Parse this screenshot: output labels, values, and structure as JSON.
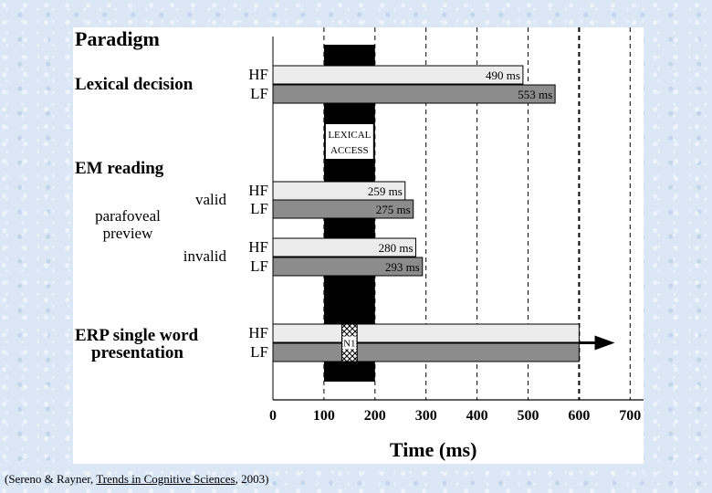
{
  "chart_data": {
    "type": "bar",
    "title": "Paradigm",
    "xlabel": "Time (ms)",
    "xlim": [
      0,
      700
    ],
    "xticks": [
      "0",
      "100",
      "200",
      "300",
      "400",
      "500",
      "600",
      "700"
    ],
    "dashed_lines": [
      100,
      200,
      300,
      400,
      500,
      600,
      700
    ],
    "lexical_access_window": {
      "start": 100,
      "end": 200,
      "label_lines": [
        "LEXICAL",
        "ACCESS"
      ]
    },
    "sections": [
      {
        "label_lines": [
          "Lexical decision"
        ],
        "groups": [
          {
            "label_lines": [],
            "bars": [
              {
                "cond": "HF",
                "value": 490,
                "text": "490 ms",
                "fill": "#ececec"
              },
              {
                "cond": "LF",
                "value": 553,
                "text": "553 ms",
                "fill": "#8c8c8c"
              }
            ]
          }
        ]
      },
      {
        "label_lines": [
          "EM reading"
        ],
        "sublabel_lines": [
          "parafoveal",
          "preview"
        ],
        "groups": [
          {
            "label_lines": [
              "valid"
            ],
            "bars": [
              {
                "cond": "HF",
                "value": 259,
                "text": "259 ms",
                "fill": "#ececec"
              },
              {
                "cond": "LF",
                "value": 275,
                "text": "275 ms",
                "fill": "#8c8c8c"
              }
            ]
          },
          {
            "label_lines": [
              "invalid"
            ],
            "bars": [
              {
                "cond": "HF",
                "value": 280,
                "text": "280 ms",
                "fill": "#ececec"
              },
              {
                "cond": "LF",
                "value": 293,
                "text": "293 ms",
                "fill": "#8c8c8c"
              }
            ]
          }
        ]
      },
      {
        "label_lines": [
          "ERP single word",
          "presentation"
        ],
        "groups": [
          {
            "label_lines": [],
            "bars": [
              {
                "cond": "HF",
                "value": 600,
                "text": "",
                "fill": "#ececec"
              },
              {
                "cond": "LF",
                "value": 600,
                "text": "",
                "fill": "#8c8c8c"
              }
            ],
            "n1": {
              "start": 135,
              "end": 165,
              "label": "N1"
            },
            "arrow_to": 670
          }
        ]
      }
    ]
  },
  "caption": {
    "prefix": "(Sereno & Rayner, ",
    "journal": "Trends in Cognitive Sciences",
    "suffix": ", 2003)"
  }
}
